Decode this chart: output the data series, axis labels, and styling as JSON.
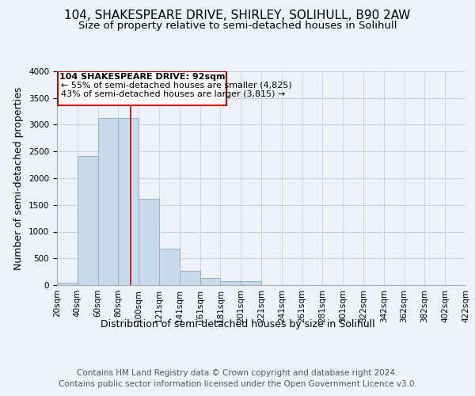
{
  "title": "104, SHAKESPEARE DRIVE, SHIRLEY, SOLIHULL, B90 2AW",
  "subtitle": "Size of property relative to semi-detached houses in Solihull",
  "xlabel": "Distribution of semi-detached houses by size in Solihull",
  "ylabel": "Number of semi-detached properties",
  "footnote1": "Contains HM Land Registry data © Crown copyright and database right 2024.",
  "footnote2": "Contains public sector information licensed under the Open Government Licence v3.0.",
  "annotation_line1": "104 SHAKESPEARE DRIVE: 92sqm",
  "annotation_line2": "← 55% of semi-detached houses are smaller (4,825)",
  "annotation_line3": "43% of semi-detached houses are larger (3,815) →",
  "bar_values": [
    50,
    2420,
    3130,
    3130,
    1620,
    680,
    265,
    130,
    80,
    80,
    0,
    0,
    0,
    0,
    0,
    0,
    0,
    0,
    0,
    0
  ],
  "bin_labels": [
    "20sqm",
    "40sqm",
    "60sqm",
    "80sqm",
    "100sqm",
    "121sqm",
    "141sqm",
    "161sqm",
    "181sqm",
    "201sqm",
    "221sqm",
    "241sqm",
    "261sqm",
    "281sqm",
    "301sqm",
    "322sqm",
    "342sqm",
    "362sqm",
    "382sqm",
    "402sqm",
    "422sqm"
  ],
  "bar_color": "#c9daea",
  "bar_edge_color": "#8ab4cc",
  "annotation_box_color": "#cc0000",
  "property_line_color": "#cc0000",
  "ylim": [
    0,
    4000
  ],
  "bg_color": "#edf2f8",
  "plot_bg_color": "#edf2f8",
  "grid_color": "#c5d3e0",
  "title_fontsize": 11,
  "subtitle_fontsize": 9.5,
  "axis_label_fontsize": 9,
  "tick_fontsize": 7.5,
  "annotation_fontsize": 8,
  "footnote_fontsize": 7.5
}
